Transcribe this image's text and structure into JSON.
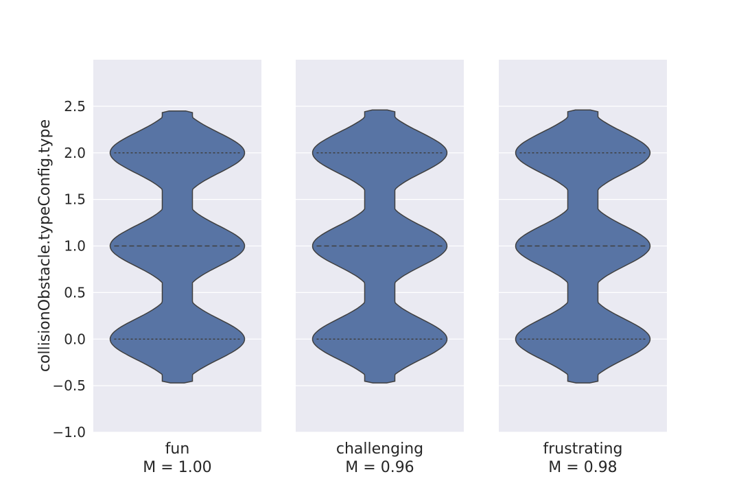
{
  "chart_data": {
    "type": "violin",
    "ylabel": "collisionObstacle.typeConfig.type",
    "ylim": [
      -1.0,
      3.0
    ],
    "yticks": [
      -1.0,
      -0.5,
      0.0,
      0.5,
      1.0,
      1.5,
      2.0,
      2.5
    ],
    "ytick_labels": [
      "−1.0",
      "−0.5",
      "0.0",
      "0.5",
      "1.0",
      "1.5",
      "2.0",
      "2.5"
    ],
    "grid": true,
    "colors": {
      "violin_fill": "#5874a4",
      "violin_edge": "#3f3f3f",
      "panel_bg": "#eaeaf2",
      "grid": "#ffffff"
    },
    "panels": [
      {
        "category": "fun",
        "stat": "M = 1.00",
        "range": [
          -0.47,
          2.45
        ],
        "quartiles": [
          0.0,
          1.0,
          2.0
        ]
      },
      {
        "category": "challenging",
        "stat": "M = 0.96",
        "range": [
          -0.47,
          2.46
        ],
        "quartiles": [
          0.0,
          1.0,
          2.0
        ]
      },
      {
        "category": "frustrating",
        "stat": "M = 0.98",
        "range": [
          -0.47,
          2.46
        ],
        "quartiles": [
          0.0,
          1.0,
          2.0
        ]
      }
    ]
  }
}
